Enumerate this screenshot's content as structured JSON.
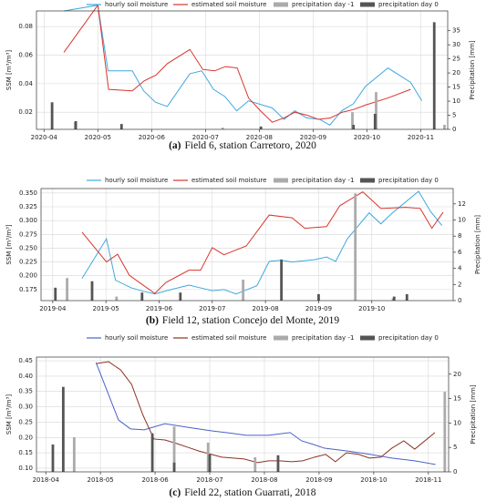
{
  "chart_data": [
    {
      "type": "line",
      "caption_label": "(a)",
      "caption": "Field 6, station Carretoro, 2020",
      "ylabel": "SSM [m³/m³]",
      "y2label": "Precipitation [mm]",
      "xlim": [
        3.86,
        11.5
      ],
      "xticks": [
        {
          "value": 4,
          "label": "2020-04"
        },
        {
          "value": 5,
          "label": "2020-05"
        },
        {
          "value": 6,
          "label": "2020-06"
        },
        {
          "value": 7,
          "label": "2020-07"
        },
        {
          "value": 8,
          "label": "2020-08"
        },
        {
          "value": 9,
          "label": "2020-09"
        },
        {
          "value": 10,
          "label": "2020-10"
        },
        {
          "value": 11,
          "label": "2020-11"
        }
      ],
      "ylim": [
        0.008,
        0.091
      ],
      "yticks": [
        0.02,
        0.04,
        0.06,
        0.08
      ],
      "y2lim": [
        0,
        42
      ],
      "y2ticks": [
        0,
        5,
        10,
        15,
        20,
        25,
        30,
        35
      ],
      "grid": true,
      "series": [
        {
          "name": "hourly soil moisture",
          "type": "line",
          "color": "#3ea8de",
          "x": [
            4.37,
            5.0,
            5.19,
            5.64,
            5.85,
            6.07,
            6.29,
            6.71,
            6.93,
            7.15,
            7.36,
            7.58,
            7.8,
            8.24,
            8.46,
            8.66,
            8.88,
            9.12,
            9.31,
            9.53,
            9.75,
            9.97,
            10.39,
            10.81,
            11.02
          ],
          "values": [
            0.091,
            0.095,
            0.049,
            0.049,
            0.035,
            0.027,
            0.024,
            0.047,
            0.049,
            0.036,
            0.031,
            0.021,
            0.028,
            0.023,
            0.015,
            0.021,
            0.016,
            0.015,
            0.011,
            0.021,
            0.026,
            0.038,
            0.051,
            0.041,
            0.028
          ]
        },
        {
          "name": "estimated soil moisture",
          "type": "line",
          "color": "#d9332b",
          "x": [
            4.37,
            5.0,
            5.2,
            5.64,
            5.86,
            6.08,
            6.29,
            6.71,
            6.95,
            7.17,
            7.37,
            7.59,
            7.8,
            8.02,
            8.24,
            8.46,
            8.66,
            8.88,
            9.1,
            9.32,
            9.54,
            9.76,
            9.97,
            10.39,
            10.81
          ],
          "values": [
            0.062,
            0.095,
            0.036,
            0.035,
            0.042,
            0.046,
            0.054,
            0.064,
            0.05,
            0.049,
            0.052,
            0.051,
            0.03,
            0.021,
            0.013,
            0.016,
            0.02,
            0.018,
            0.015,
            0.016,
            0.02,
            0.022,
            0.025,
            0.03,
            0.036
          ]
        },
        {
          "name": "precipitation day -1",
          "type": "bar",
          "axis": "y2",
          "color": "#ababab",
          "x": [
            4.58,
            7.32,
            9.73,
            10.17,
            11.44
          ],
          "values": [
            2.6,
            0.6,
            6.1,
            13.2,
            1.6
          ]
        },
        {
          "name": "precipitation day 0",
          "type": "bar",
          "axis": "y2",
          "color": "#555555",
          "x": [
            4.15,
            4.59,
            5.44,
            8.03,
            9.75,
            10.15,
            11.25
          ],
          "values": [
            9.6,
            2.9,
            1.9,
            1.0,
            1.6,
            5.5,
            38
          ]
        }
      ]
    },
    {
      "type": "line",
      "caption_label": "(b)",
      "caption": "Field 12, station Concejo del Monte, 2019",
      "ylabel": "SSM [m³/m³]",
      "y2label": "Precipitation [mm]",
      "xlim": [
        3.78,
        11.53
      ],
      "xticks": [
        {
          "value": 4,
          "label": "2019-04"
        },
        {
          "value": 5,
          "label": "2019-05"
        },
        {
          "value": 6,
          "label": "2019-06"
        },
        {
          "value": 7,
          "label": "2019-07"
        },
        {
          "value": 8,
          "label": "2019-08"
        },
        {
          "value": 9,
          "label": "2019-09"
        },
        {
          "value": 10,
          "label": "2019-10"
        }
      ],
      "ylim": [
        0.155,
        0.358
      ],
      "yticks": [
        {
          "value": 0.175,
          "label": "0.175"
        },
        {
          "value": 0.2,
          "label": "0.200"
        },
        {
          "value": 0.225,
          "label": "0.225"
        },
        {
          "value": 0.25,
          "label": "0.250"
        },
        {
          "value": 0.275,
          "label": "0.275"
        },
        {
          "value": 0.3,
          "label": "0.300"
        },
        {
          "value": 0.325,
          "label": "0.325"
        },
        {
          "value": 0.35,
          "label": "0.350"
        }
      ],
      "y2lim": [
        0,
        13.9
      ],
      "y2ticks": [
        0,
        2,
        4,
        6,
        8,
        10,
        12
      ],
      "grid": true,
      "series": [
        {
          "name": "hourly soil moisture",
          "type": "line",
          "color": "#3ea8de",
          "x": [
            4.55,
            5.01,
            5.18,
            5.48,
            5.7,
            5.92,
            6.14,
            6.56,
            6.78,
            7.0,
            7.22,
            7.45,
            7.84,
            8.07,
            8.29,
            8.5,
            8.92,
            9.15,
            9.32,
            9.54,
            9.95,
            10.17,
            10.4,
            10.88,
            11.1,
            11.32
          ],
          "values": [
            0.195,
            0.267,
            0.192,
            0.178,
            0.172,
            0.167,
            0.173,
            0.183,
            0.178,
            0.173,
            0.175,
            0.167,
            0.182,
            0.226,
            0.228,
            0.225,
            0.229,
            0.234,
            0.226,
            0.267,
            0.314,
            0.294,
            0.315,
            0.353,
            0.317,
            0.291
          ]
        },
        {
          "name": "estimated soil moisture",
          "type": "line",
          "color": "#d9332b",
          "x": [
            4.55,
            5.01,
            5.22,
            5.44,
            5.7,
            5.92,
            6.13,
            6.56,
            6.78,
            7.0,
            7.22,
            7.64,
            8.07,
            8.5,
            8.74,
            9.15,
            9.4,
            9.83,
            10.17,
            10.64,
            10.91,
            11.13,
            11.34
          ],
          "values": [
            0.279,
            0.225,
            0.239,
            0.201,
            0.183,
            0.168,
            0.188,
            0.21,
            0.21,
            0.251,
            0.238,
            0.254,
            0.31,
            0.305,
            0.286,
            0.289,
            0.327,
            0.352,
            0.322,
            0.324,
            0.322,
            0.286,
            0.315
          ]
        },
        {
          "name": "precipitation day -1",
          "type": "bar",
          "axis": "y2",
          "color": "#ababab",
          "x": [
            4.27,
            5.2,
            7.58,
            9.69,
            10.4
          ],
          "values": [
            2.8,
            0.5,
            2.6,
            13.3,
            0.3
          ]
        },
        {
          "name": "precipitation day 0",
          "type": "bar",
          "axis": "y2",
          "color": "#555555",
          "x": [
            4.05,
            4.74,
            5.68,
            6.4,
            8.3,
            9.0,
            10.42,
            10.66
          ],
          "values": [
            1.6,
            2.4,
            1.0,
            1.0,
            5.1,
            0.8,
            0.5,
            0.8
          ]
        }
      ]
    },
    {
      "type": "line",
      "caption_label": "(c)",
      "caption": "Field 22, station Guarrati, 2018",
      "ylabel": "SSM [m³/m³]",
      "y2label": "Precipitation [mm]",
      "xlim": [
        3.83,
        11.37
      ],
      "xticks": [
        {
          "value": 4,
          "label": "2018-04"
        },
        {
          "value": 5,
          "label": "2018-05"
        },
        {
          "value": 6,
          "label": "2018-06"
        },
        {
          "value": 7,
          "label": "2018-07"
        },
        {
          "value": 8,
          "label": "2018-08"
        },
        {
          "value": 9,
          "label": "2018-09"
        },
        {
          "value": 10,
          "label": "2018-10"
        },
        {
          "value": 11,
          "label": "2018-11"
        }
      ],
      "ylim": [
        0.088,
        0.462
      ],
      "yticks": [
        {
          "value": 0.1,
          "label": "0.10"
        },
        {
          "value": 0.15,
          "label": "0.15"
        },
        {
          "value": 0.2,
          "label": "0.20"
        },
        {
          "value": 0.25,
          "label": "0.25"
        },
        {
          "value": 0.3,
          "label": "0.30"
        },
        {
          "value": 0.35,
          "label": "0.35"
        },
        {
          "value": 0.4,
          "label": "0.40"
        },
        {
          "value": 0.45,
          "label": "0.45"
        }
      ],
      "y2lim": [
        0,
        23.5
      ],
      "y2ticks": [
        0,
        5,
        10,
        15,
        20
      ],
      "grid": true,
      "series": [
        {
          "name": "hourly soil moisture",
          "type": "line",
          "color": "#4b61c7",
          "x": [
            4.92,
            5.33,
            5.55,
            5.8,
            6.18,
            6.6,
            7.02,
            7.43,
            7.67,
            8.07,
            8.47,
            8.68,
            8.9,
            9.1,
            9.52,
            9.93,
            10.33,
            10.75,
            11.13
          ],
          "values": [
            0.444,
            0.257,
            0.228,
            0.225,
            0.245,
            0.233,
            0.222,
            0.213,
            0.207,
            0.207,
            0.216,
            0.189,
            0.177,
            0.165,
            0.156,
            0.145,
            0.133,
            0.124,
            0.112
          ]
        },
        {
          "name": "estimated soil moisture",
          "type": "line",
          "color": "#8a3323",
          "x": [
            4.93,
            5.15,
            5.37,
            5.57,
            5.78,
            5.98,
            6.18,
            6.4,
            6.6,
            6.8,
            7.22,
            7.43,
            7.63,
            7.87,
            8.08,
            8.28,
            8.5,
            8.7,
            8.92,
            9.12,
            9.3,
            9.5,
            9.72,
            9.92,
            10.13,
            10.33,
            10.55,
            10.75,
            11.12
          ],
          "values": [
            0.441,
            0.447,
            0.42,
            0.373,
            0.272,
            0.195,
            0.192,
            0.18,
            0.168,
            0.156,
            0.136,
            0.133,
            0.13,
            0.118,
            0.124,
            0.124,
            0.121,
            0.124,
            0.136,
            0.145,
            0.121,
            0.15,
            0.145,
            0.133,
            0.136,
            0.165,
            0.189,
            0.162,
            0.216
          ]
        },
        {
          "name": "precipitation day -1",
          "type": "bar",
          "axis": "y2",
          "color": "#ababab",
          "x": [
            4.52,
            6.35,
            6.97,
            7.83,
            11.3
          ],
          "values": [
            7.1,
            9.3,
            6.0,
            3.0,
            16.4
          ]
        },
        {
          "name": "precipitation day 0",
          "type": "bar",
          "axis": "y2",
          "color": "#555555",
          "x": [
            4.13,
            4.32,
            5.95,
            6.35,
            7.0,
            8.25
          ],
          "values": [
            5.6,
            17.4,
            7.9,
            1.9,
            3.6,
            3.4
          ]
        }
      ]
    }
  ]
}
